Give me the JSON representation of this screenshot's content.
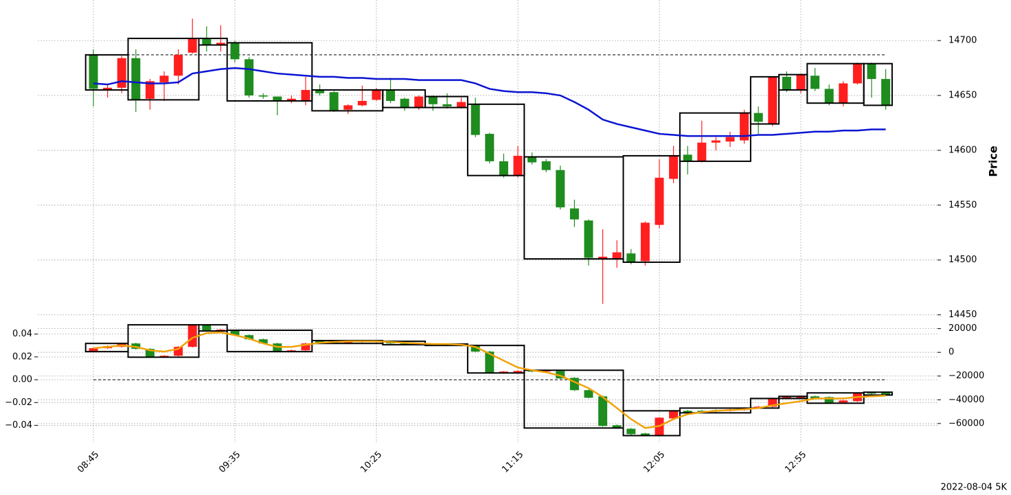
{
  "footer": "2022-08-04 5K",
  "chart_data": [
    {
      "type": "candlestick",
      "ylabel": "Price",
      "categories": [
        "08:45",
        null,
        null,
        null,
        null,
        null,
        null,
        null,
        null,
        null,
        "09:35",
        null,
        null,
        null,
        null,
        null,
        null,
        null,
        null,
        null,
        "10:25",
        null,
        null,
        null,
        null,
        null,
        null,
        null,
        null,
        null,
        "11:15",
        null,
        null,
        null,
        null,
        null,
        null,
        null,
        null,
        null,
        "12:05",
        null,
        null,
        null,
        null,
        null,
        null,
        null,
        null,
        null,
        "12:55",
        null,
        null,
        null,
        null,
        null,
        null
      ],
      "open": [
        14687,
        14655,
        14657,
        14684,
        14647,
        14662,
        14668,
        14689,
        14702,
        14696,
        14698,
        14683,
        14650,
        14649,
        14645,
        14645,
        14655,
        14653,
        14637,
        14641,
        14646,
        14655,
        14647,
        14639,
        14649,
        14642,
        14639,
        14642,
        14615,
        14590,
        14577,
        14594,
        14590,
        14582,
        14547,
        14536,
        14501,
        14501,
        14506,
        14499,
        14532,
        14574,
        14596,
        14590,
        14607,
        14608,
        14609,
        14634,
        14624,
        14667,
        14655,
        14668,
        14656,
        14643,
        14661,
        14679,
        14665
      ],
      "high": [
        14692,
        14660,
        14686,
        14692,
        14665,
        14672,
        14692,
        14720,
        14713,
        14714,
        14700,
        14685,
        14652,
        14649,
        14650,
        14667,
        14660,
        14654,
        14642,
        14659,
        14657,
        14666,
        14648,
        14650,
        14650,
        14652,
        14648,
        14648,
        14616,
        14597,
        14604,
        14598,
        14592,
        14586,
        14555,
        14537,
        14528,
        14518,
        14510,
        14535,
        14592,
        14604,
        14604,
        14627,
        14612,
        14617,
        14637,
        14640,
        14667,
        14672,
        14670,
        14675,
        14660,
        14663,
        14680,
        14680,
        14674
      ],
      "low": [
        14640,
        14648,
        14652,
        14635,
        14637,
        14645,
        14660,
        14688,
        14690,
        14690,
        14680,
        14648,
        14647,
        14632,
        14643,
        14641,
        14650,
        14635,
        14633,
        14640,
        14645,
        14643,
        14636,
        14637,
        14636,
        14638,
        14638,
        14612,
        14588,
        14575,
        14575,
        14587,
        14580,
        14546,
        14530,
        14495,
        14460,
        14493,
        14496,
        14495,
        14529,
        14570,
        14578,
        14589,
        14600,
        14603,
        14606,
        14615,
        14622,
        14653,
        14652,
        14654,
        14641,
        14640,
        14660,
        14648,
        14637
      ],
      "close": [
        14656,
        14657,
        14684,
        14646,
        14663,
        14668,
        14687,
        14702,
        14696,
        14698,
        14683,
        14650,
        14649,
        14645,
        14647,
        14655,
        14652,
        14636,
        14641,
        14645,
        14655,
        14645,
        14639,
        14649,
        14642,
        14640,
        14644,
        14614,
        14590,
        14577,
        14595,
        14589,
        14582,
        14548,
        14537,
        14502,
        14503,
        14507,
        14498,
        14534,
        14575,
        14595,
        14590,
        14607,
        14609,
        14612,
        14634,
        14626,
        14667,
        14655,
        14669,
        14656,
        14643,
        14661,
        14679,
        14665,
        14641
      ],
      "up_color": "#ff1f1f",
      "down_color": "#1e8c1e",
      "line": {
        "color": "#0a14d2",
        "values": [
          14661,
          14660,
          14663,
          14662,
          14661,
          14661,
          14662,
          14670,
          14672,
          14674,
          14675,
          14674,
          14672,
          14670,
          14669,
          14668,
          14667,
          14667,
          14666,
          14666,
          14665,
          14665,
          14665,
          14664,
          14664,
          14664,
          14664,
          14661,
          14656,
          14654,
          14653,
          14653,
          14652,
          14650,
          14644,
          14637,
          14628,
          14624,
          14621,
          14618,
          14615,
          14614,
          14613,
          14613,
          14613,
          14613,
          14613,
          14614,
          14614,
          14615,
          14616,
          14617,
          14617,
          14618,
          14618,
          14619,
          14619
        ]
      },
      "hline": 14687,
      "boxes": [
        [
          0,
          2
        ],
        [
          3,
          7
        ],
        [
          8,
          9
        ],
        [
          10,
          15
        ],
        [
          16,
          20
        ],
        [
          21,
          23
        ],
        [
          24,
          26
        ],
        [
          27,
          30
        ],
        [
          31,
          37
        ],
        [
          38,
          41
        ],
        [
          42,
          46
        ],
        [
          47,
          48
        ],
        [
          49,
          50
        ],
        [
          51,
          54
        ],
        [
          55,
          56
        ]
      ],
      "ylim": [
        14446,
        14737
      ],
      "yticks": [
        14450,
        14500,
        14550,
        14600,
        14650,
        14700
      ],
      "grid": true
    },
    {
      "type": "candlestick",
      "candle_axis": "y2",
      "open": [
        600,
        3500,
        4600,
        7500,
        2900,
        -4100,
        -2900,
        4600,
        23200,
        18000,
        18600,
        14500,
        11000,
        7500,
        600,
        1700,
        9900,
        9300,
        8100,
        8700,
        8700,
        9300,
        7500,
        6400,
        7000,
        6400,
        5800,
        5800,
        600,
        -17400,
        -17400,
        -15100,
        -16200,
        -15700,
        -21500,
        -31900,
        -37100,
        -61500,
        -64400,
        -68400,
        -70200,
        -55700,
        -49300,
        -49300,
        -48700,
        -49300,
        -48700,
        -47000,
        -45800,
        -38900,
        -38300,
        -37100,
        -37700,
        -42300,
        -41200,
        -33600,
        -33600
      ],
      "high": [
        4000,
        5800,
        8100,
        8100,
        3500,
        -2300,
        5200,
        23800,
        23800,
        19700,
        19100,
        15100,
        11600,
        8100,
        2300,
        8100,
        10400,
        9900,
        9900,
        10400,
        10400,
        9900,
        8100,
        8100,
        7500,
        7000,
        7000,
        6400,
        1200,
        -15700,
        -15100,
        -14500,
        -14500,
        -15100,
        -20900,
        -31300,
        -36500,
        -60900,
        -63800,
        -67800,
        -54500,
        -48700,
        -48700,
        -48700,
        -48100,
        -47600,
        -46400,
        -45200,
        -38300,
        -37100,
        -36500,
        -36500,
        -37100,
        -40000,
        -33600,
        -33100,
        -33100
      ],
      "low": [
        0,
        2900,
        4100,
        2300,
        -4600,
        -4600,
        -3500,
        4100,
        18000,
        17400,
        13900,
        10400,
        7000,
        0,
        0,
        1200,
        7500,
        7000,
        7500,
        8100,
        8100,
        7000,
        5800,
        5800,
        5200,
        5200,
        5200,
        0,
        -18000,
        -18000,
        -18000,
        -16800,
        -16800,
        -22600,
        -32500,
        -38900,
        -62600,
        -64400,
        -69600,
        -70800,
        -70800,
        -56300,
        -51600,
        -51000,
        -50500,
        -49900,
        -49300,
        -47600,
        -46400,
        -39400,
        -38900,
        -39400,
        -43500,
        -42900,
        -41800,
        -35400,
        -36500
      ],
      "close": [
        3500,
        5200,
        7500,
        2900,
        -4100,
        -2900,
        4600,
        23200,
        18600,
        19100,
        14500,
        11000,
        7500,
        600,
        1700,
        7500,
        8100,
        7500,
        9300,
        9900,
        9900,
        7500,
        6400,
        7500,
        5800,
        5800,
        6400,
        600,
        -17400,
        -16200,
        -15700,
        -16200,
        -15100,
        -22000,
        -31900,
        -38300,
        -62100,
        -63800,
        -69000,
        -70200,
        -55100,
        -49300,
        -51000,
        -50500,
        -49900,
        -48100,
        -47000,
        -45800,
        -38900,
        -37700,
        -37100,
        -38900,
        -42900,
        -40600,
        -34200,
        -34800,
        -36000
      ],
      "up_color": "#ff1f1f",
      "down_color": "#1e8c1e",
      "line": {
        "color": "#f0a30a",
        "axis": "y2",
        "values": [
          3500,
          4600,
          5800,
          4600,
          1700,
          600,
          2900,
          12200,
          16200,
          16800,
          14500,
          11600,
          7500,
          4600,
          4600,
          6400,
          8100,
          8700,
          9300,
          9300,
          9300,
          8700,
          8100,
          7500,
          7000,
          7000,
          6400,
          4600,
          -1200,
          -7000,
          -12800,
          -15100,
          -16800,
          -19700,
          -24900,
          -30200,
          -37700,
          -47000,
          -56300,
          -63800,
          -62100,
          -56300,
          -52200,
          -50500,
          -49300,
          -48700,
          -48100,
          -47000,
          -44700,
          -42900,
          -41200,
          -38900,
          -38900,
          -38900,
          -37700,
          -37100,
          -36500
        ]
      },
      "hline": 0,
      "boxes": [
        [
          0,
          2
        ],
        [
          3,
          7
        ],
        [
          8,
          9
        ],
        [
          10,
          15
        ],
        [
          16,
          20
        ],
        [
          21,
          23
        ],
        [
          24,
          26
        ],
        [
          27,
          30
        ],
        [
          31,
          37
        ],
        [
          38,
          41
        ],
        [
          42,
          46
        ],
        [
          47,
          48
        ],
        [
          49,
          50
        ],
        [
          51,
          54
        ],
        [
          55,
          56
        ]
      ],
      "ylim": [
        -0.055,
        0.05
      ],
      "yticks": [
        {
          "value": -0.04,
          "label": "−0.04"
        },
        {
          "value": -0.02,
          "label": "−0.02"
        },
        {
          "value": 0,
          "label": "0.00"
        },
        0.02,
        0.04
      ],
      "y2lim": [
        -76000,
        25000
      ],
      "y2ticks": [
        {
          "value": -60000,
          "label": "−60000"
        },
        {
          "value": -40000,
          "label": "−40000"
        },
        {
          "value": -20000,
          "label": "−20000"
        },
        0,
        20000
      ],
      "grid": true
    }
  ]
}
